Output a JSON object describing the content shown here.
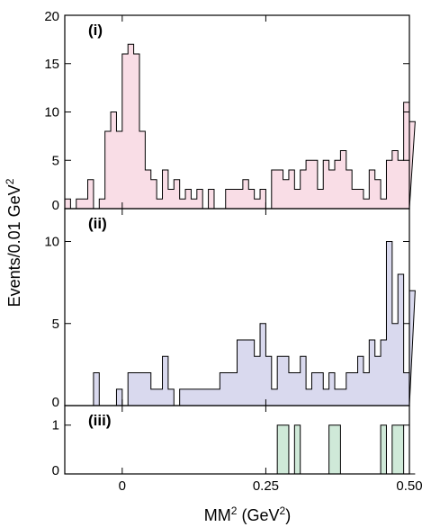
{
  "chart_data": {
    "type": "histogram",
    "xlabel": "MM",
    "xlabel_sup": "2",
    "xlabel_unit_pre": " (GeV",
    "xlabel_unit_sup": "2",
    "xlabel_unit_post": ")",
    "ylabel": "Events/0.01 GeV",
    "ylabel_sup": "2",
    "xlim": [
      -0.1,
      0.5
    ],
    "bin_width": 0.01,
    "x_ticks": [
      0,
      0.25,
      0.5
    ],
    "x_tick_labels": [
      "0",
      "0.25",
      "0.50"
    ],
    "panels": [
      {
        "label": "(i)",
        "ylim": [
          0,
          20
        ],
        "y_ticks": [
          0,
          5,
          10,
          15,
          20
        ],
        "y_tick_labels": [
          "0",
          "5",
          "10",
          "15",
          "20"
        ],
        "fill": "#f9dde6",
        "counts": [
          1,
          0,
          1,
          1,
          3,
          0,
          1,
          8,
          10,
          8,
          16,
          17,
          16,
          8,
          4,
          3,
          1,
          4,
          2,
          3,
          1,
          2,
          1,
          2,
          0,
          2,
          0,
          0,
          2,
          2,
          2,
          3,
          2,
          1,
          2,
          0,
          4,
          4,
          3,
          4,
          2,
          4,
          5,
          5,
          2,
          5,
          4,
          5,
          6,
          4,
          2,
          2,
          1,
          4,
          3,
          1,
          5,
          6,
          5,
          11,
          9
        ]
      },
      {
        "label": "(ii)",
        "ylim": [
          0,
          12
        ],
        "y_ticks": [
          0,
          5,
          10
        ],
        "y_tick_labels": [
          "0",
          "5",
          "10"
        ],
        "fill": "#d9d9ee",
        "counts": [
          0,
          0,
          0,
          0,
          0,
          2,
          0,
          0,
          0,
          1,
          0,
          2,
          2,
          2,
          2,
          1,
          1,
          3,
          1,
          0,
          1,
          1,
          1,
          1,
          1,
          1,
          1,
          2,
          2,
          2,
          4,
          4,
          4,
          3,
          5,
          3,
          1,
          3,
          3,
          2,
          2,
          3,
          1,
          2,
          2,
          1,
          2,
          1,
          1,
          2,
          2,
          3,
          2,
          4,
          3,
          4,
          10,
          5,
          8,
          2,
          7
        ]
      },
      {
        "label": "(iii)",
        "ylim": [
          0,
          1.4
        ],
        "y_ticks": [
          0,
          1
        ],
        "y_tick_labels": [
          "0",
          "1"
        ],
        "fill": "#cfe9d8",
        "counts": [
          0,
          0,
          0,
          0,
          0,
          0,
          0,
          0,
          0,
          0,
          0,
          0,
          0,
          0,
          0,
          0,
          0,
          0,
          0,
          0,
          0,
          0,
          0,
          0,
          0,
          0,
          0,
          0,
          0,
          0,
          0,
          0,
          0,
          0,
          0,
          0,
          0,
          1,
          1,
          0,
          1,
          0,
          0,
          0,
          0,
          0,
          1,
          1,
          0,
          0,
          0,
          0,
          0,
          0,
          0,
          1,
          0,
          1,
          1,
          0,
          0
        ]
      }
    ]
  }
}
